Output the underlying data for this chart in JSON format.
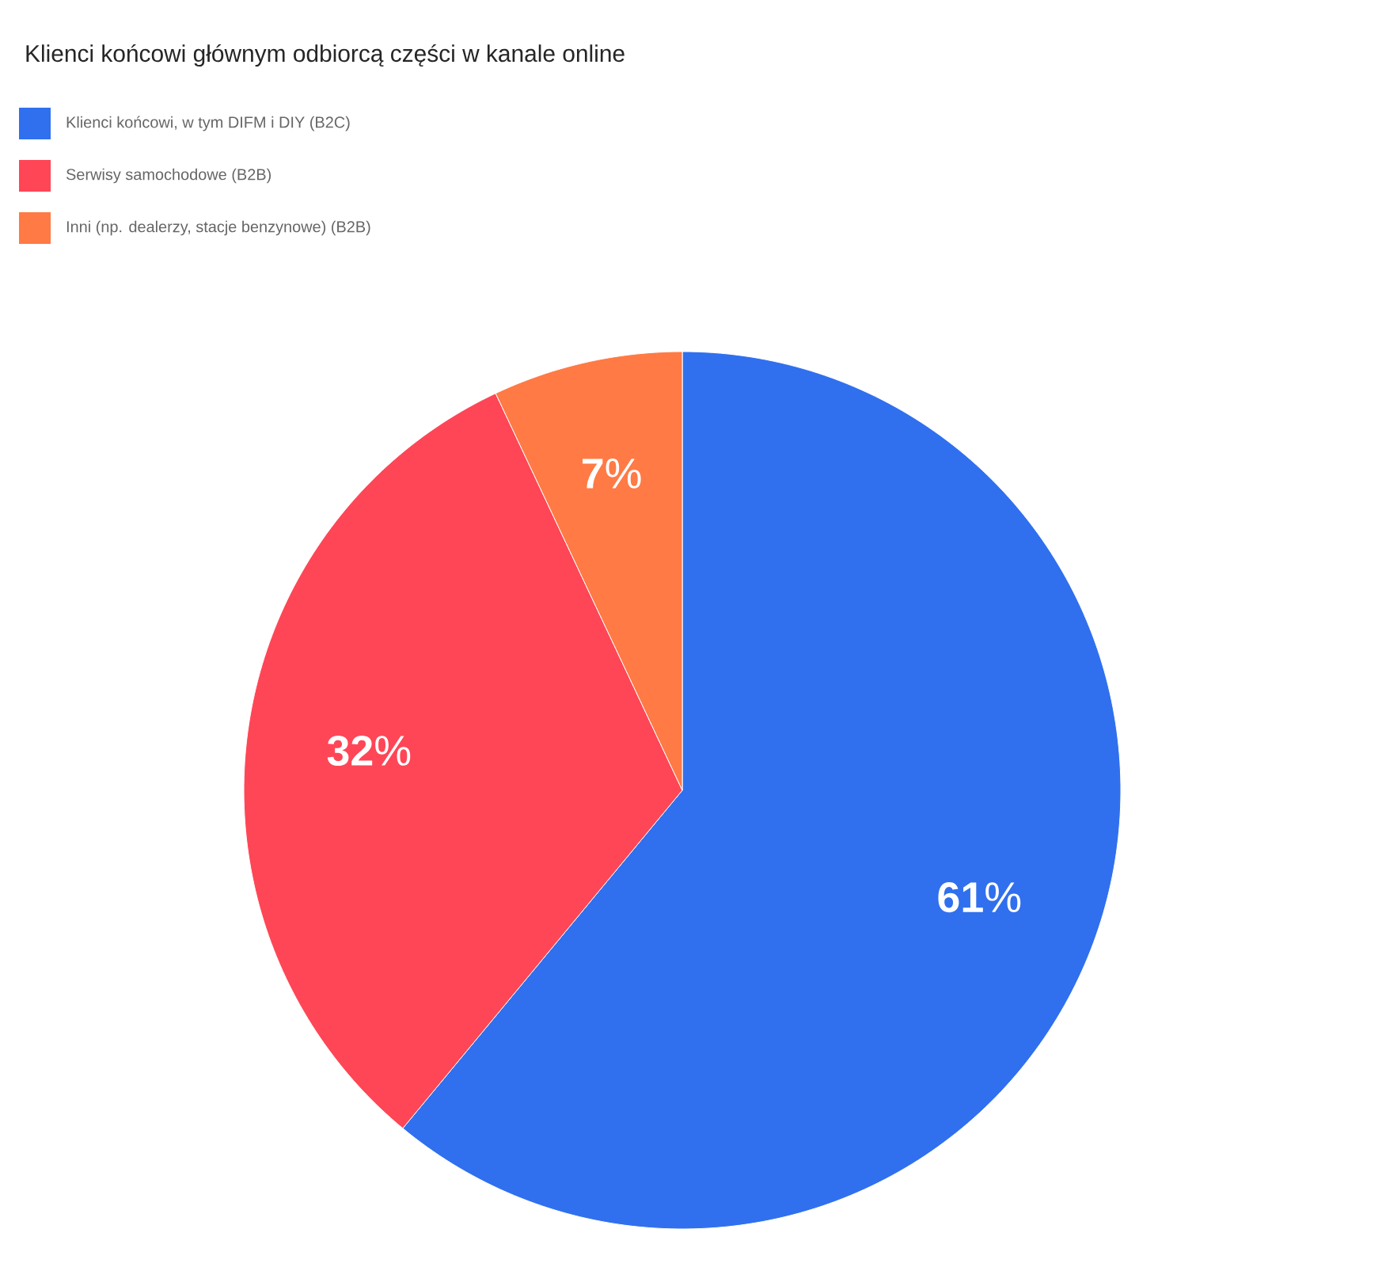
{
  "chart_data": {
    "type": "pie",
    "title": "Klienci końcowi głównym odbiorcą części w kanale online",
    "categories": [
      "Klienci końcowi, w tym DIFM i DIY (B2C)",
      "Serwisy samochodowe (B2B)",
      "Inni (np. dealerzy, stacje benzynowe) (B2B)"
    ],
    "values": [
      61,
      32,
      7
    ],
    "colors": [
      "#3070ee",
      "#ff4656",
      "#ff7a45"
    ],
    "value_labels": [
      "**61**%",
      "**32**%",
      "**7**%"
    ],
    "legend": "top left"
  }
}
